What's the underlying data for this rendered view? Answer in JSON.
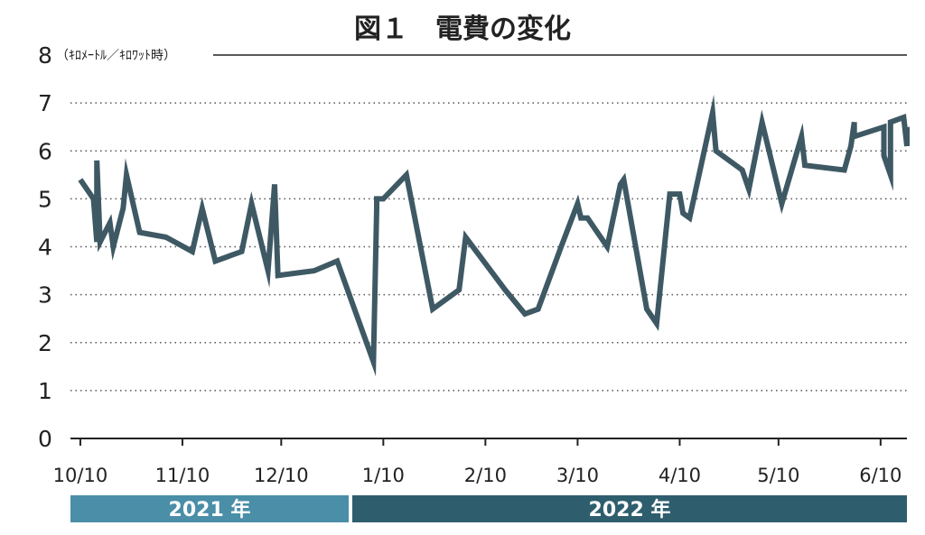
{
  "chart_data": {
    "type": "line",
    "title": "図１　電費の変化",
    "ylabel": "（ｷﾛﾒｰﾄﾙ／ｷﾛﾜｯﾄ時）",
    "xlabel": "",
    "ylim": [
      0,
      8
    ],
    "yticks": [
      "0",
      "1",
      "2",
      "3",
      "4",
      "5",
      "6",
      "7",
      "8"
    ],
    "grid": "horizontal-dotted",
    "x_range": [
      "2021-10-07",
      "2022-06-18"
    ],
    "xticks": [
      {
        "date": "2021-10-10",
        "label": "10/10"
      },
      {
        "date": "2021-11-10",
        "label": "11/10"
      },
      {
        "date": "2021-12-10",
        "label": "12/10"
      },
      {
        "date": "2022-01-10",
        "label": "1/10"
      },
      {
        "date": "2022-02-10",
        "label": "2/10"
      },
      {
        "date": "2022-03-10",
        "label": "3/10"
      },
      {
        "date": "2022-04-10",
        "label": "4/10"
      },
      {
        "date": "2022-05-10",
        "label": "5/10"
      },
      {
        "date": "2022-06-10",
        "label": "6/10"
      }
    ],
    "year_bands": [
      {
        "label": "2021 年",
        "start": "2021-10-10",
        "end": "2021-12-31",
        "color": "#4a8ea8"
      },
      {
        "label": "2022 年",
        "start": "2022-01-01",
        "end": "2022-06-18",
        "color": "#2e5e6e"
      }
    ],
    "series": [
      {
        "color": "#3e5964",
        "points": [
          [
            "2021-10-10",
            5.4
          ],
          [
            "2021-10-14",
            5.0
          ],
          [
            "2021-10-15",
            4.1
          ],
          [
            "2021-10-15",
            5.8
          ],
          [
            "2021-10-16",
            4.1
          ],
          [
            "2021-10-19",
            4.5
          ],
          [
            "2021-10-20",
            4.0
          ],
          [
            "2021-10-23",
            4.8
          ],
          [
            "2021-10-24",
            5.5
          ],
          [
            "2021-10-28",
            4.3
          ],
          [
            "2021-11-05",
            4.2
          ],
          [
            "2021-11-13",
            3.9
          ],
          [
            "2021-11-16",
            4.8
          ],
          [
            "2021-11-20",
            3.7
          ],
          [
            "2021-11-28",
            3.9
          ],
          [
            "2021-12-01",
            4.9
          ],
          [
            "2021-12-06",
            3.5
          ],
          [
            "2021-12-08",
            5.3
          ],
          [
            "2021-12-09",
            3.4
          ],
          [
            "2021-12-20",
            3.5
          ],
          [
            "2021-12-27",
            3.7
          ],
          [
            "2022-01-07",
            1.6
          ],
          [
            "2022-01-08",
            4.8
          ],
          [
            "2022-01-08",
            5.0
          ],
          [
            "2022-01-10",
            5.0
          ],
          [
            "2022-01-17",
            5.5
          ],
          [
            "2022-01-25",
            2.7
          ],
          [
            "2022-02-02",
            3.1
          ],
          [
            "2022-02-04",
            4.2
          ],
          [
            "2022-02-16",
            3.1
          ],
          [
            "2022-02-22",
            2.6
          ],
          [
            "2022-02-26",
            2.7
          ],
          [
            "2022-03-05",
            4.0
          ],
          [
            "2022-03-10",
            4.9
          ],
          [
            "2022-03-11",
            4.6
          ],
          [
            "2022-03-13",
            4.6
          ],
          [
            "2022-03-19",
            4.0
          ],
          [
            "2022-03-23",
            5.3
          ],
          [
            "2022-03-24",
            5.4
          ],
          [
            "2022-03-31",
            2.7
          ],
          [
            "2022-04-03",
            2.4
          ],
          [
            "2022-04-07",
            5.1
          ],
          [
            "2022-04-10",
            5.1
          ],
          [
            "2022-04-11",
            4.7
          ],
          [
            "2022-04-13",
            4.6
          ],
          [
            "2022-04-20",
            6.8
          ],
          [
            "2022-04-21",
            6.0
          ],
          [
            "2022-04-29",
            5.6
          ],
          [
            "2022-05-01",
            5.2
          ],
          [
            "2022-05-05",
            6.6
          ],
          [
            "2022-05-11",
            4.9
          ],
          [
            "2022-05-17",
            6.3
          ],
          [
            "2022-05-18",
            5.7
          ],
          [
            "2022-05-30",
            5.6
          ],
          [
            "2022-06-01",
            6.1
          ],
          [
            "2022-06-02",
            6.6
          ],
          [
            "2022-06-02",
            6.3
          ],
          [
            "2022-06-11",
            6.5
          ],
          [
            "2022-06-11",
            5.9
          ],
          [
            "2022-06-13",
            5.5
          ],
          [
            "2022-06-13",
            6.6
          ],
          [
            "2022-06-17",
            6.7
          ],
          [
            "2022-06-18",
            6.1
          ],
          [
            "2022-06-18",
            6.5
          ]
        ]
      }
    ]
  }
}
